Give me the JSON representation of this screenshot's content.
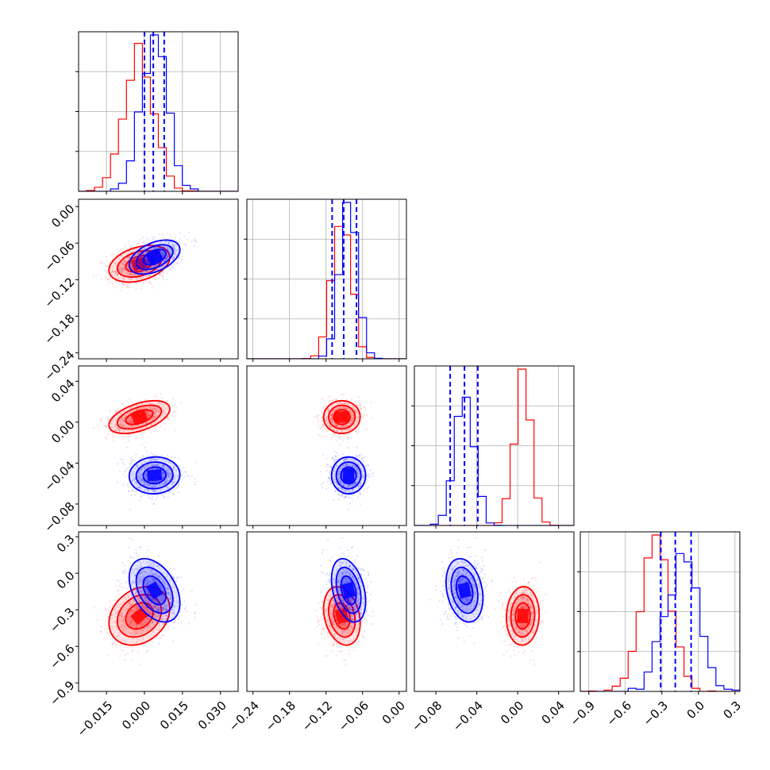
{
  "chart_data": {
    "type": "corner",
    "grid": true,
    "colors": {
      "red": "#ff0000",
      "blue": "#0000ff"
    },
    "series": [
      {
        "color": "#ff0000",
        "means": [
          -0.002,
          -0.094,
          0.005,
          -0.35
        ],
        "stds": [
          0.006,
          0.015,
          0.008,
          0.12
        ],
        "corr": [
          [
            0,
            1,
            0.35
          ],
          [
            0,
            2,
            0.5
          ],
          [
            0,
            3,
            0.25
          ],
          [
            1,
            3,
            -0.25
          ],
          [
            2,
            3,
            0.05
          ]
        ]
      },
      {
        "color": "#0000ff",
        "means": [
          0.004,
          -0.083,
          -0.052,
          -0.14
        ],
        "stds": [
          0.005,
          0.014,
          0.009,
          0.13
        ],
        "corr": [
          [
            0,
            1,
            0.45
          ],
          [
            0,
            2,
            0.05
          ],
          [
            0,
            3,
            -0.4
          ],
          [
            1,
            3,
            -0.35
          ],
          [
            2,
            3,
            -0.25
          ]
        ]
      }
    ],
    "quantile_lines": [
      [
        0.0,
        0.0035,
        0.0078
      ],
      [
        -0.11,
        -0.091,
        -0.07
      ],
      [
        -0.066,
        -0.052,
        -0.039
      ],
      [
        -0.31,
        -0.19,
        -0.06
      ]
    ],
    "ranges": [
      [
        -0.026,
        0.037
      ],
      [
        -0.25,
        0.012
      ],
      [
        -0.101,
        0.055
      ],
      [
        -0.97,
        0.34
      ]
    ],
    "x_ticks": [
      [
        -0.015,
        0.0,
        0.015,
        0.03
      ],
      [
        -0.24,
        -0.18,
        -0.12,
        -0.06,
        0.0
      ],
      [
        -0.08,
        -0.04,
        0.0,
        0.04
      ],
      [
        -0.9,
        -0.6,
        -0.3,
        0.0,
        0.3
      ]
    ],
    "x_tick_labels": [
      [
        "−0.015",
        "0.000",
        "0.015",
        "0.030"
      ],
      [
        "−0.24",
        "−0.18",
        "−0.12",
        "−0.06",
        "0.00"
      ],
      [
        "−0.08",
        "−0.04",
        "0.00",
        "0.04"
      ],
      [
        "−0.9",
        "−0.6",
        "−0.3",
        "0.0",
        "0.3"
      ]
    ],
    "y_ticks": [
      [],
      [
        0.0,
        -0.06,
        -0.12,
        -0.18,
        -0.24
      ],
      [
        0.04,
        0.0,
        -0.04,
        -0.08
      ],
      [
        0.3,
        0.0,
        -0.3,
        -0.6,
        -0.9
      ]
    ],
    "y_tick_labels": [
      [],
      [
        "0.00",
        "−0.06",
        "−0.12",
        "−0.18",
        "−0.24"
      ],
      [
        "0.04",
        "0.00",
        "−0.04",
        "−0.08"
      ],
      [
        "0.3",
        "0.0",
        "−0.3",
        "−0.6",
        "−0.9"
      ]
    ],
    "xlabel": "",
    "ylabel": "",
    "title": ""
  }
}
